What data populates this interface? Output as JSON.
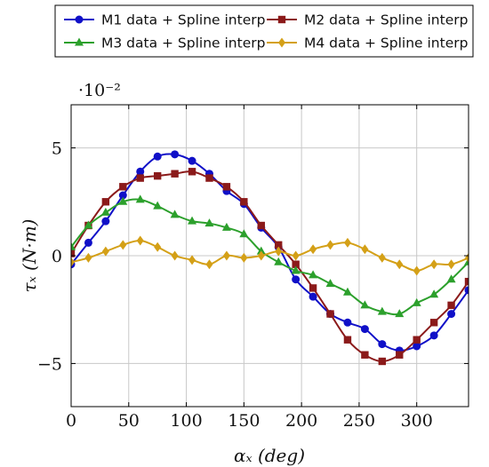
{
  "chart_data": {
    "type": "line",
    "xlabel": "αₓ (deg)",
    "ylabel": "τₓ (N·m)",
    "y_multiplier": "·10⁻²",
    "xlim": [
      0,
      345
    ],
    "ylim": [
      -7,
      7
    ],
    "x_ticks": [
      0,
      50,
      100,
      150,
      200,
      250,
      300
    ],
    "y_ticks": [
      -5,
      0,
      5
    ],
    "y_tick_labels": [
      "−5",
      "0",
      "5"
    ],
    "grid": true,
    "legend_position": "top",
    "x": [
      0,
      15,
      30,
      45,
      60,
      75,
      90,
      105,
      120,
      135,
      150,
      165,
      180,
      195,
      210,
      225,
      240,
      255,
      270,
      285,
      300,
      315,
      330,
      345
    ],
    "series": [
      {
        "name": "M1 data + Spline interp",
        "color": "#1010c8",
        "marker": "circle",
        "values": [
          -0.4,
          0.6,
          1.6,
          2.8,
          3.9,
          4.6,
          4.7,
          4.4,
          3.8,
          3.0,
          2.4,
          1.3,
          0.4,
          -1.1,
          -1.9,
          -2.7,
          -3.1,
          -3.4,
          -4.1,
          -4.4,
          -4.2,
          -3.7,
          -2.7,
          -1.6
        ]
      },
      {
        "name": "M2 data + Spline interp",
        "color": "#8b1a1a",
        "marker": "square",
        "values": [
          0.1,
          1.4,
          2.5,
          3.2,
          3.6,
          3.7,
          3.8,
          3.9,
          3.6,
          3.2,
          2.5,
          1.4,
          0.5,
          -0.4,
          -1.5,
          -2.7,
          -3.9,
          -4.6,
          -4.9,
          -4.6,
          -3.9,
          -3.1,
          -2.3,
          -1.2
        ]
      },
      {
        "name": "M3 data + Spline interp",
        "color": "#2ca02c",
        "marker": "triangle",
        "values": [
          0.4,
          1.4,
          2.0,
          2.5,
          2.6,
          2.3,
          1.9,
          1.6,
          1.5,
          1.3,
          1.0,
          0.2,
          -0.3,
          -0.7,
          -0.9,
          -1.3,
          -1.7,
          -2.3,
          -2.6,
          -2.7,
          -2.2,
          -1.8,
          -1.1,
          -0.3
        ]
      },
      {
        "name": "M4 data + Spline interp",
        "color": "#d4a017",
        "marker": "diamond",
        "values": [
          -0.3,
          -0.1,
          0.2,
          0.5,
          0.7,
          0.4,
          0.0,
          -0.2,
          -0.4,
          0.0,
          -0.1,
          0.0,
          0.2,
          0.0,
          0.3,
          0.5,
          0.6,
          0.3,
          -0.1,
          -0.4,
          -0.7,
          -0.4,
          -0.4,
          -0.1
        ]
      }
    ]
  }
}
